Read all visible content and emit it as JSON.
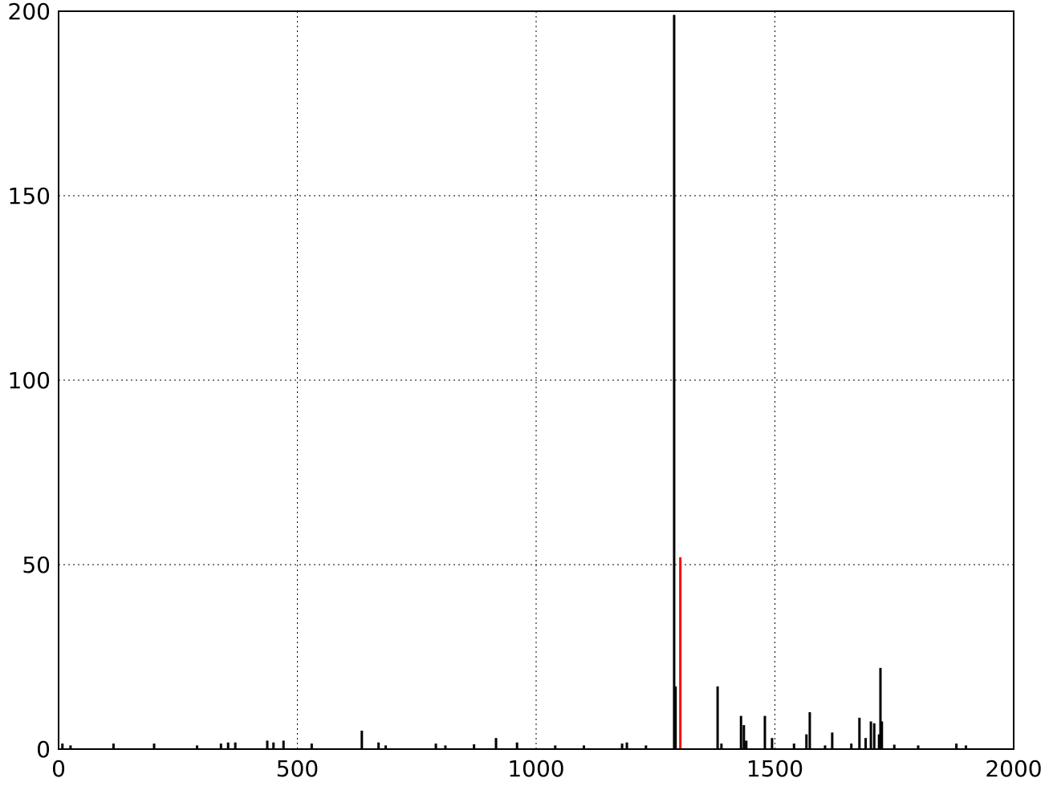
{
  "chart_data": {
    "type": "stem",
    "series": [
      {
        "color": "#000000",
        "x": [
          8,
          25,
          115,
          200,
          290,
          340,
          355,
          370,
          437,
          450,
          471,
          530,
          635,
          670,
          685,
          790,
          810,
          870,
          916,
          960,
          1040,
          1100,
          1180,
          1190,
          1230,
          1289,
          1292,
          1380,
          1388,
          1429,
          1435,
          1440,
          1479,
          1494,
          1540,
          1566,
          1573,
          1605,
          1620,
          1660,
          1677,
          1690,
          1701,
          1708,
          1718,
          1721,
          1724,
          1750,
          1800,
          1880,
          1900
        ],
        "values": [
          1.5,
          1,
          1.5,
          1.5,
          1,
          1.5,
          1.8,
          1.8,
          2.3,
          1.8,
          2.3,
          1.5,
          5,
          1.8,
          1,
          1.5,
          1,
          1.3,
          3,
          1.8,
          1,
          1,
          1.5,
          1.8,
          1,
          199,
          17,
          17,
          1.5,
          9,
          6.5,
          2.3,
          9,
          3,
          1.5,
          4,
          10,
          1,
          4.5,
          1.5,
          8.5,
          3,
          7.5,
          7,
          4,
          22,
          7.5,
          1.2,
          1,
          1.5,
          1
        ]
      },
      {
        "color": "#ff0000",
        "x": [
          1302
        ],
        "values": [
          52
        ]
      }
    ],
    "xlim": [
      0,
      2000
    ],
    "xticks": [
      0,
      500,
      1000,
      1500,
      2000
    ],
    "ylim": [
      0,
      200
    ],
    "yticks": [
      0,
      50,
      100,
      150,
      200
    ],
    "grid": true
  }
}
